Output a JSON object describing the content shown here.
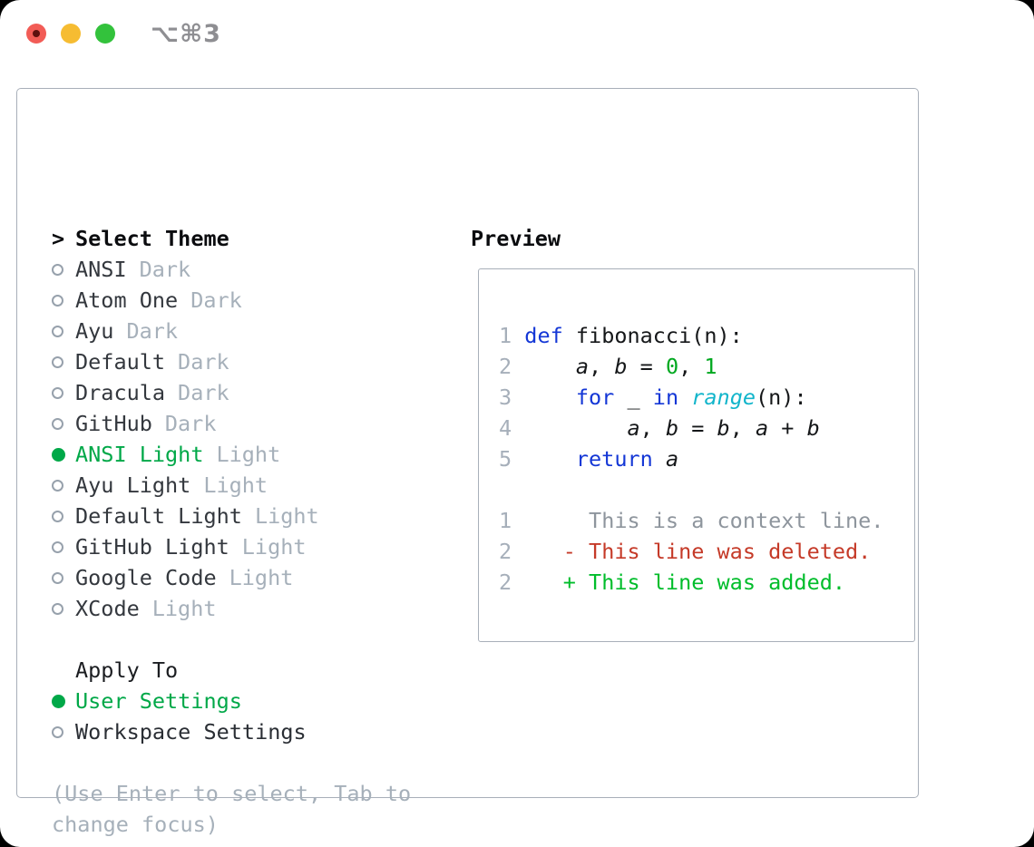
{
  "titlebar": {
    "shortcut": "⌥⌘3"
  },
  "colors": {
    "traffic_red": "#F25C56",
    "traffic_red_dot": "#5E100E",
    "traffic_yellow": "#F6BC32",
    "traffic_green": "#33C23C",
    "accent_green": "#00A848",
    "border_gray": "#A8AFB9",
    "muted_gray": "#A6B0BA",
    "keyword_blue": "#1437D6",
    "builtin_cyan": "#12B5CB",
    "number_green": "#00A81F",
    "diff_deleted_red": "#C53A28",
    "diff_added_green": "#00BD2B",
    "diff_context_gray": "#8E959D"
  },
  "left": {
    "title_prefix": ">",
    "title": "Select Theme",
    "themes": [
      {
        "name": "ANSI",
        "variant": "Dark",
        "selected": false
      },
      {
        "name": "Atom One",
        "variant": "Dark",
        "selected": false
      },
      {
        "name": "Ayu",
        "variant": "Dark",
        "selected": false
      },
      {
        "name": "Default",
        "variant": "Dark",
        "selected": false
      },
      {
        "name": "Dracula",
        "variant": "Dark",
        "selected": false
      },
      {
        "name": "GitHub",
        "variant": "Dark",
        "selected": false
      },
      {
        "name": "ANSI Light",
        "variant": "Light",
        "selected": true
      },
      {
        "name": "Ayu Light",
        "variant": "Light",
        "selected": false
      },
      {
        "name": "Default Light",
        "variant": "Light",
        "selected": false
      },
      {
        "name": "GitHub Light",
        "variant": "Light",
        "selected": false
      },
      {
        "name": "Google Code",
        "variant": "Light",
        "selected": false
      },
      {
        "name": "XCode",
        "variant": "Light",
        "selected": false
      }
    ],
    "apply": {
      "title": "Apply To",
      "options": [
        {
          "label": "User Settings",
          "selected": true
        },
        {
          "label": "Workspace Settings",
          "selected": false
        }
      ]
    },
    "help": "(Use Enter to select, Tab to change focus)"
  },
  "preview": {
    "title": "Preview",
    "lines": [
      [
        [
          "1 ",
          "ln"
        ],
        [
          "def",
          "kw"
        ],
        [
          " fibonacci(n):",
          "code-txt"
        ]
      ],
      [
        [
          "2 ",
          "ln"
        ],
        [
          "    ",
          "code-txt"
        ],
        [
          "a",
          "var"
        ],
        [
          ", ",
          "code-txt"
        ],
        [
          "b",
          "var"
        ],
        [
          " = ",
          "code-txt"
        ],
        [
          "0",
          "num"
        ],
        [
          ", ",
          "code-txt"
        ],
        [
          "1",
          "num"
        ]
      ],
      [
        [
          "3 ",
          "ln"
        ],
        [
          "    ",
          "code-txt"
        ],
        [
          "for",
          "kw"
        ],
        [
          " _ ",
          "code-txt"
        ],
        [
          "in",
          "kw"
        ],
        [
          " ",
          "code-txt"
        ],
        [
          "range",
          "cy"
        ],
        [
          "(n):",
          "code-txt"
        ]
      ],
      [
        [
          "4 ",
          "ln"
        ],
        [
          "        ",
          "code-txt"
        ],
        [
          "a",
          "var"
        ],
        [
          ", ",
          "code-txt"
        ],
        [
          "b",
          "var"
        ],
        [
          " = ",
          "code-txt"
        ],
        [
          "b",
          "var"
        ],
        [
          ", ",
          "code-txt"
        ],
        [
          "a",
          "var"
        ],
        [
          " + ",
          "code-txt"
        ],
        [
          "b",
          "var"
        ]
      ],
      [
        [
          "5 ",
          "ln"
        ],
        [
          "    ",
          "code-txt"
        ],
        [
          "return",
          "kw"
        ],
        [
          " ",
          "code-txt"
        ],
        [
          "a",
          "var"
        ]
      ],
      [],
      [
        [
          "1",
          "ln"
        ],
        [
          "      ",
          "code-txt"
        ],
        [
          "This is a context line.",
          "ctx"
        ]
      ],
      [
        [
          "2",
          "ln"
        ],
        [
          "    ",
          "code-txt"
        ],
        [
          "- This line was deleted.",
          "del"
        ]
      ],
      [
        [
          "2",
          "ln"
        ],
        [
          "    ",
          "code-txt"
        ],
        [
          "+ This line was added.",
          "add"
        ]
      ]
    ]
  }
}
